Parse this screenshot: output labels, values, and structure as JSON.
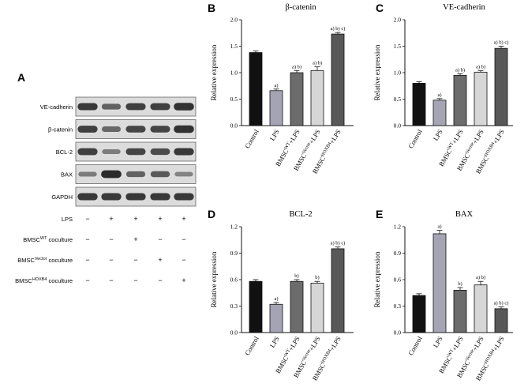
{
  "panel_letters": {
    "a": "A",
    "b": "B",
    "c": "C",
    "d": "D",
    "e": "E"
  },
  "western_blot": {
    "rows": [
      "VE-cadherin",
      "β-catenin",
      "BCL-2",
      "BAX",
      "GAPDH"
    ],
    "conditions": [
      {
        "base": "LPS",
        "sup": "",
        "tail": "",
        "signs": [
          "−",
          "+",
          "+",
          "+",
          "+"
        ]
      },
      {
        "base": "BMSC",
        "sup": "WT",
        "tail": " coculture",
        "signs": [
          "−",
          "−",
          "+",
          "−",
          "−"
        ]
      },
      {
        "base": "BMSC",
        "sup": "Vector",
        "tail": " coculture",
        "signs": [
          "−",
          "−",
          "−",
          "+",
          "−"
        ]
      },
      {
        "base": "BMSC",
        "sup": "HOXB4",
        "tail": " coculture",
        "signs": [
          "−",
          "−",
          "−",
          "−",
          "+"
        ]
      }
    ],
    "band_intensity": [
      [
        0.85,
        0.55,
        0.8,
        0.8,
        0.9
      ],
      [
        0.8,
        0.5,
        0.75,
        0.75,
        0.9
      ],
      [
        0.8,
        0.35,
        0.75,
        0.7,
        0.85
      ],
      [
        0.35,
        0.95,
        0.55,
        0.6,
        0.3
      ],
      [
        0.85,
        0.85,
        0.85,
        0.85,
        0.85
      ]
    ],
    "colors": {
      "band": "#1a1a1a",
      "panel_bg": "#dcdcdc"
    }
  },
  "chart_data": [
    {
      "id": "B",
      "type": "bar",
      "title": "β-catenin",
      "ylabel": "Relative expression",
      "ylim": [
        0,
        2.0
      ],
      "yticks": [
        "0.0",
        "0.5",
        "1.0",
        "1.5",
        "2.0"
      ],
      "ytick_values": [
        0,
        0.5,
        1.0,
        1.5,
        2.0
      ],
      "categories": [
        "Control",
        "LPS",
        "BMSC^WT+LPS",
        "BMSC^Vector+LPS",
        "BMSC^HOXB4+LPS"
      ],
      "values": [
        1.38,
        0.66,
        1.0,
        1.04,
        1.73
      ],
      "errors": [
        0.03,
        0.03,
        0.04,
        0.07,
        0.03
      ],
      "annotations": [
        "",
        "a)",
        "a) b)",
        "a) b)",
        "a) b) c)"
      ]
    },
    {
      "id": "C",
      "type": "bar",
      "title": "VE-cadherin",
      "ylabel": "Relative expression",
      "ylim": [
        0,
        2.0
      ],
      "yticks": [
        "0.0",
        "0.5",
        "1.0",
        "1.5",
        "2.0"
      ],
      "ytick_values": [
        0,
        0.5,
        1.0,
        1.5,
        2.0
      ],
      "categories": [
        "Control",
        "LPS",
        "BMSC^WT+LPS",
        "BMSC^Vector+LPS",
        "BMSC^HOXB4+LPS"
      ],
      "values": [
        0.8,
        0.48,
        0.95,
        1.01,
        1.46
      ],
      "errors": [
        0.03,
        0.03,
        0.03,
        0.03,
        0.04
      ],
      "annotations": [
        "",
        "a)",
        "a) b)",
        "a) b)",
        "a) b) c)"
      ]
    },
    {
      "id": "D",
      "type": "bar",
      "title": "BCL-2",
      "ylabel": "Relative expression",
      "ylim": [
        0,
        1.2
      ],
      "yticks": [
        "0.0",
        "0.3",
        "0.6",
        "0.9",
        "1.2"
      ],
      "ytick_values": [
        0,
        0.3,
        0.6,
        0.9,
        1.2
      ],
      "categories": [
        "Control",
        "LPS",
        "BMSC^WT+LPS",
        "BMSC^Vector+LPS",
        "BMSC^HOXB4+LPS"
      ],
      "values": [
        0.58,
        0.32,
        0.58,
        0.56,
        0.95
      ],
      "errors": [
        0.02,
        0.02,
        0.02,
        0.02,
        0.02
      ],
      "annotations": [
        "",
        "a)",
        "b)",
        "b)",
        "a) b) c)"
      ]
    },
    {
      "id": "E",
      "type": "bar",
      "title": "BAX",
      "ylabel": "Relative expression",
      "ylim": [
        0,
        1.2
      ],
      "yticks": [
        "0.0",
        "0.3",
        "0.6",
        "0.9",
        "1.2"
      ],
      "ytick_values": [
        0,
        0.3,
        0.6,
        0.9,
        1.2
      ],
      "categories": [
        "Control",
        "LPS",
        "BMSC^WT+LPS",
        "BMSC^Vector+LPS",
        "BMSC^HOXB4+LPS"
      ],
      "values": [
        0.42,
        1.12,
        0.48,
        0.54,
        0.27
      ],
      "errors": [
        0.02,
        0.04,
        0.03,
        0.04,
        0.02
      ],
      "annotations": [
        "",
        "a)",
        "b)",
        "a) b)",
        "a) b) c)"
      ]
    }
  ],
  "bar_colors": [
    "#111111",
    "#a4a4b4",
    "#6c6c6c",
    "#d6d6d6",
    "#585858"
  ]
}
